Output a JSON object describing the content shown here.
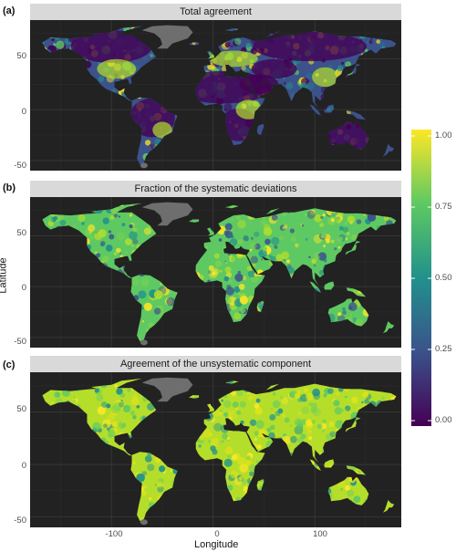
{
  "panels": [
    {
      "letter": "(a)",
      "title": "Total agreement"
    },
    {
      "letter": "(b)",
      "title": "Fraction of the systematic deviations"
    },
    {
      "letter": "(c)",
      "title": "Agreement of the unsystematic component"
    }
  ],
  "axes": {
    "xlabel": "Longitude",
    "ylabel": "Latitude",
    "x_ticks": [
      "-100",
      "0",
      "100"
    ],
    "y_ticks": [
      "50",
      "0",
      "-50"
    ]
  },
  "legend": {
    "labels": [
      "1.00",
      "0.75",
      "0.50",
      "0.25",
      "0.00"
    ],
    "colormap": "viridis",
    "range": [
      0,
      1
    ]
  },
  "colors": {
    "background": "#222222",
    "strip": "#d9d9d9",
    "greenland": "#6e6e6e",
    "viridis": [
      "#440154",
      "#3b528b",
      "#21918c",
      "#5ec962",
      "#fde725"
    ]
  }
}
